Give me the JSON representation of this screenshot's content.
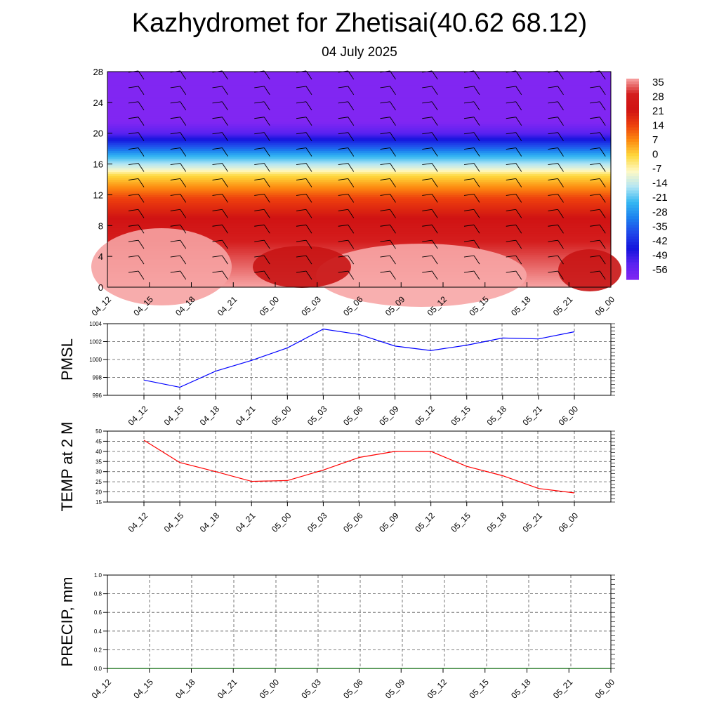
{
  "title": "Kazhydromet for Zhetisai(40.62 68.12)",
  "subtitle": "04 July 2025",
  "chart_data": [
    {
      "type": "heatmap",
      "x_labels": [
        "04_12",
        "04_15",
        "04_18",
        "04_21",
        "05_00",
        "05_03",
        "05_06",
        "05_09",
        "05_12",
        "05_15",
        "05_18",
        "05_21",
        "06_00"
      ],
      "yticks": [
        0,
        4,
        8,
        12,
        16,
        20,
        24,
        28
      ],
      "ylim": [
        0,
        28
      ],
      "colorbar": {
        "labels": [
          "35",
          "28",
          "21",
          "14",
          "7",
          "0",
          "-7",
          "-14",
          "-21",
          "-28",
          "-35",
          "-42",
          "-49",
          "-56"
        ],
        "colors": [
          "#f8a6a6",
          "#d41d1d",
          "#d01313",
          "#ed3e0e",
          "#fd8b10",
          "#fed93d",
          "#fff9c4",
          "#b4e6f4",
          "#35b8f2",
          "#1d82ef",
          "#1f47ea",
          "#1414dd",
          "#5a22f0",
          "#8126f2"
        ]
      },
      "vertical_profile": [
        {
          "level": 0,
          "value": 35
        },
        {
          "level": 6,
          "value": 28
        },
        {
          "level": 9,
          "value": 21
        },
        {
          "level": 11.5,
          "value": 14
        },
        {
          "level": 13,
          "value": 7
        },
        {
          "level": 14.5,
          "value": 0
        },
        {
          "level": 15.5,
          "value": -10
        },
        {
          "level": 17,
          "value": -21
        },
        {
          "level": 18.5,
          "value": -35
        },
        {
          "level": 20,
          "value": -49
        },
        {
          "level": 21.5,
          "value": -56
        },
        {
          "level": 28,
          "value": -58
        }
      ]
    },
    {
      "type": "line",
      "ylabel": "PMSL",
      "x": [
        "04_12",
        "04_15",
        "04_18",
        "04_21",
        "05_00",
        "05_03",
        "05_06",
        "05_09",
        "05_12",
        "05_15",
        "05_18",
        "05_21",
        "06_00"
      ],
      "ylim": [
        996,
        1004
      ],
      "yticks": [
        996,
        998,
        1000,
        1002,
        1004
      ],
      "color": "#0000ff",
      "values": [
        997.7,
        996.9,
        998.7,
        999.9,
        1001.3,
        1003.4,
        1002.8,
        1001.5,
        1001.0,
        1001.6,
        1002.4,
        1002.3,
        1003.1
      ]
    },
    {
      "type": "line",
      "ylabel": "TEMP at 2 M",
      "x": [
        "04_12",
        "04_15",
        "04_18",
        "04_21",
        "05_00",
        "05_03",
        "05_06",
        "05_09",
        "05_12",
        "05_15",
        "05_18",
        "05_21",
        "06_00"
      ],
      "ylim": [
        15,
        50
      ],
      "yticks": [
        15,
        20,
        25,
        30,
        35,
        40,
        45,
        50
      ],
      "color": "#ff0000",
      "values": [
        45.5,
        34.5,
        30.0,
        25.2,
        25.6,
        30.8,
        37.0,
        40.0,
        40.0,
        32.6,
        28.0,
        21.7,
        19.5
      ]
    },
    {
      "type": "line",
      "ylabel": "PRECIP, mm",
      "x": [
        "04_12",
        "04_15",
        "04_18",
        "04_21",
        "05_00",
        "05_03",
        "05_06",
        "05_09",
        "05_12",
        "05_15",
        "05_18",
        "05_21",
        "06_00"
      ],
      "ylim": [
        0.0,
        1.0
      ],
      "yticks": [
        "0.0",
        "0.2",
        "0.4",
        "0.6",
        "0.8",
        "1.0"
      ],
      "color": "#006400",
      "values": [
        0,
        0,
        0,
        0,
        0,
        0,
        0,
        0,
        0,
        0,
        0,
        0,
        0
      ]
    }
  ]
}
